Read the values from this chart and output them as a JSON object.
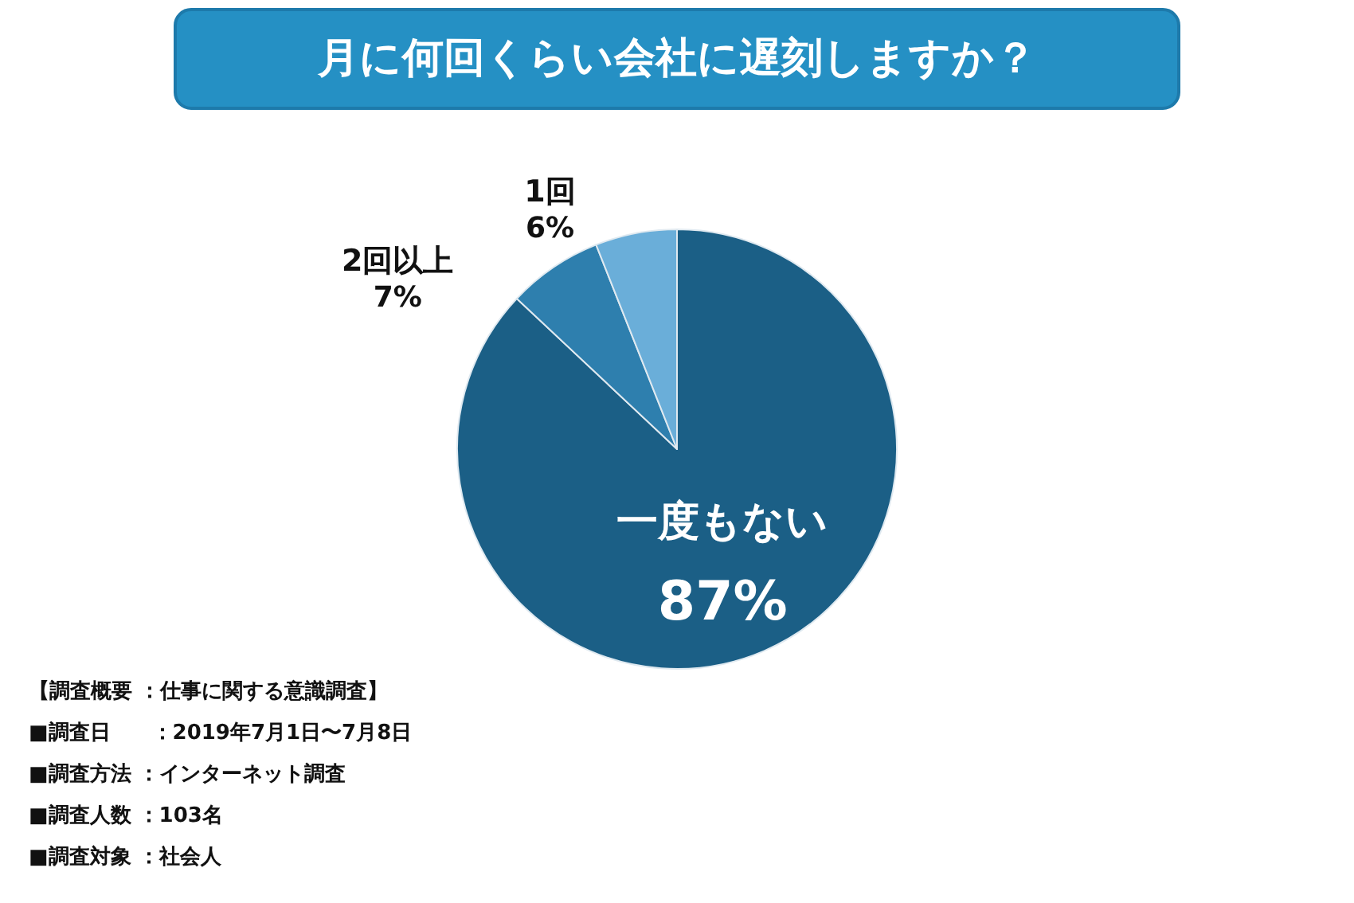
{
  "chart_data": {
    "type": "pie",
    "title": "月に何回くらい会社に遅刻しますか？",
    "categories": [
      "一度もない",
      "2回以上",
      "1回"
    ],
    "values": [
      87,
      7,
      6
    ],
    "value_labels": [
      "87%",
      "7%",
      "6%"
    ],
    "colors": [
      "#1b5f86",
      "#2e7fae",
      "#6aaed9"
    ],
    "annotations": [
      "【調査概要 ：仕事に関する意識調査】",
      "■調査日　　：2019年7月1日〜7月8日",
      "■調査方法 ：インターネット調査",
      "■調査人数 ：103名",
      "■調査対象 ：社会人"
    ]
  }
}
